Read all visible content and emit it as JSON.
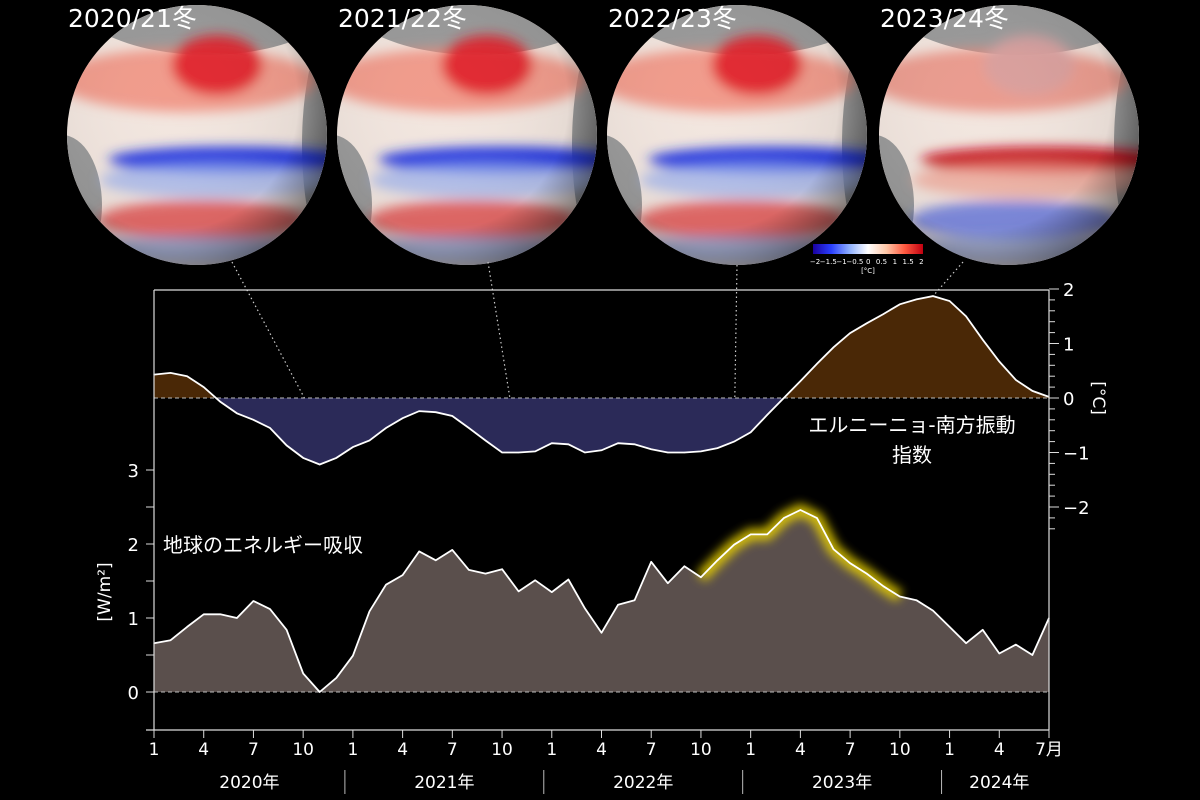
{
  "globes": [
    {
      "label": "2020/21冬",
      "phase": "la-nina",
      "connect_month": "2020-12"
    },
    {
      "label": "2021/22冬",
      "phase": "la-nina",
      "connect_month": "2021-11"
    },
    {
      "label": "2022/23冬",
      "phase": "la-nina",
      "connect_month": "2022-12"
    },
    {
      "label": "2023/24冬",
      "phase": "el-nino",
      "connect_month": "2023-12"
    }
  ],
  "colorbar": {
    "ticks": [
      "−2",
      "−1.5",
      "−1",
      "−0.5",
      "0",
      "0.5",
      "1",
      "1.5",
      "2"
    ],
    "unit": "[°C]",
    "colors": [
      "#1a00a0",
      "#2a40ff",
      "#8fb0ff",
      "#ffffff",
      "#ffc8a8",
      "#ff5a40",
      "#c00010"
    ]
  },
  "chart_data": {
    "type": "area",
    "x_start": "2020-01",
    "x_end": "2024-07",
    "x_tick_labels": [
      "1",
      "4",
      "7",
      "10",
      "1",
      "4",
      "7",
      "10",
      "1",
      "4",
      "7",
      "10",
      "1",
      "4",
      "7",
      "10",
      "1",
      "4",
      "7月"
    ],
    "year_labels": [
      "2020年",
      "2021年",
      "2022年",
      "2023年",
      "2024年"
    ],
    "grid": false,
    "series": [
      {
        "name": "エルニーニョ-南方振動指数",
        "label_lines": [
          "エルニーニョ-南方振動",
          "指数"
        ],
        "axis": "right",
        "ylabel": "[°C]",
        "ylim": [
          -2,
          2
        ],
        "y_tick_labels": [
          "2",
          "1",
          "0",
          "−1",
          "−2"
        ],
        "positive_color": "#4a2806",
        "negative_color": "#2b2a58",
        "values": [
          0.43,
          0.46,
          0.4,
          0.2,
          -0.07,
          -0.28,
          -0.4,
          -0.55,
          -0.87,
          -1.1,
          -1.22,
          -1.1,
          -0.9,
          -0.78,
          -0.55,
          -0.37,
          -0.24,
          -0.26,
          -0.33,
          -0.55,
          -0.78,
          -1.0,
          -1.0,
          -0.98,
          -0.83,
          -0.85,
          -1.0,
          -0.96,
          -0.83,
          -0.85,
          -0.94,
          -1.0,
          -1.0,
          -0.98,
          -0.92,
          -0.8,
          -0.63,
          -0.31,
          0.0,
          0.31,
          0.63,
          0.93,
          1.19,
          1.37,
          1.54,
          1.72,
          1.81,
          1.87,
          1.78,
          1.5,
          1.07,
          0.67,
          0.33,
          0.13,
          0.02
        ]
      },
      {
        "name": "地球のエネルギー吸収",
        "axis": "left",
        "ylabel": "[W/m²]",
        "ylim": [
          0,
          3
        ],
        "y_tick_labels": [
          "3",
          "2",
          "1",
          "0"
        ],
        "fill_color": "#5a4f4c",
        "highlight_color": "#e8d000",
        "highlight_range": [
          "2022-10",
          "2023-10"
        ],
        "values": [
          0.66,
          0.7,
          0.88,
          1.05,
          1.05,
          1.0,
          1.23,
          1.12,
          0.84,
          0.25,
          0.0,
          0.19,
          0.49,
          1.09,
          1.45,
          1.58,
          1.9,
          1.78,
          1.92,
          1.65,
          1.6,
          1.66,
          1.36,
          1.51,
          1.35,
          1.52,
          1.13,
          0.8,
          1.18,
          1.24,
          1.76,
          1.47,
          1.7,
          1.55,
          1.78,
          1.99,
          2.13,
          2.13,
          2.35,
          2.46,
          2.35,
          1.93,
          1.74,
          1.6,
          1.43,
          1.29,
          1.24,
          1.1,
          0.88,
          0.66,
          0.84,
          0.52,
          0.64,
          0.5,
          1.0
        ]
      }
    ]
  }
}
